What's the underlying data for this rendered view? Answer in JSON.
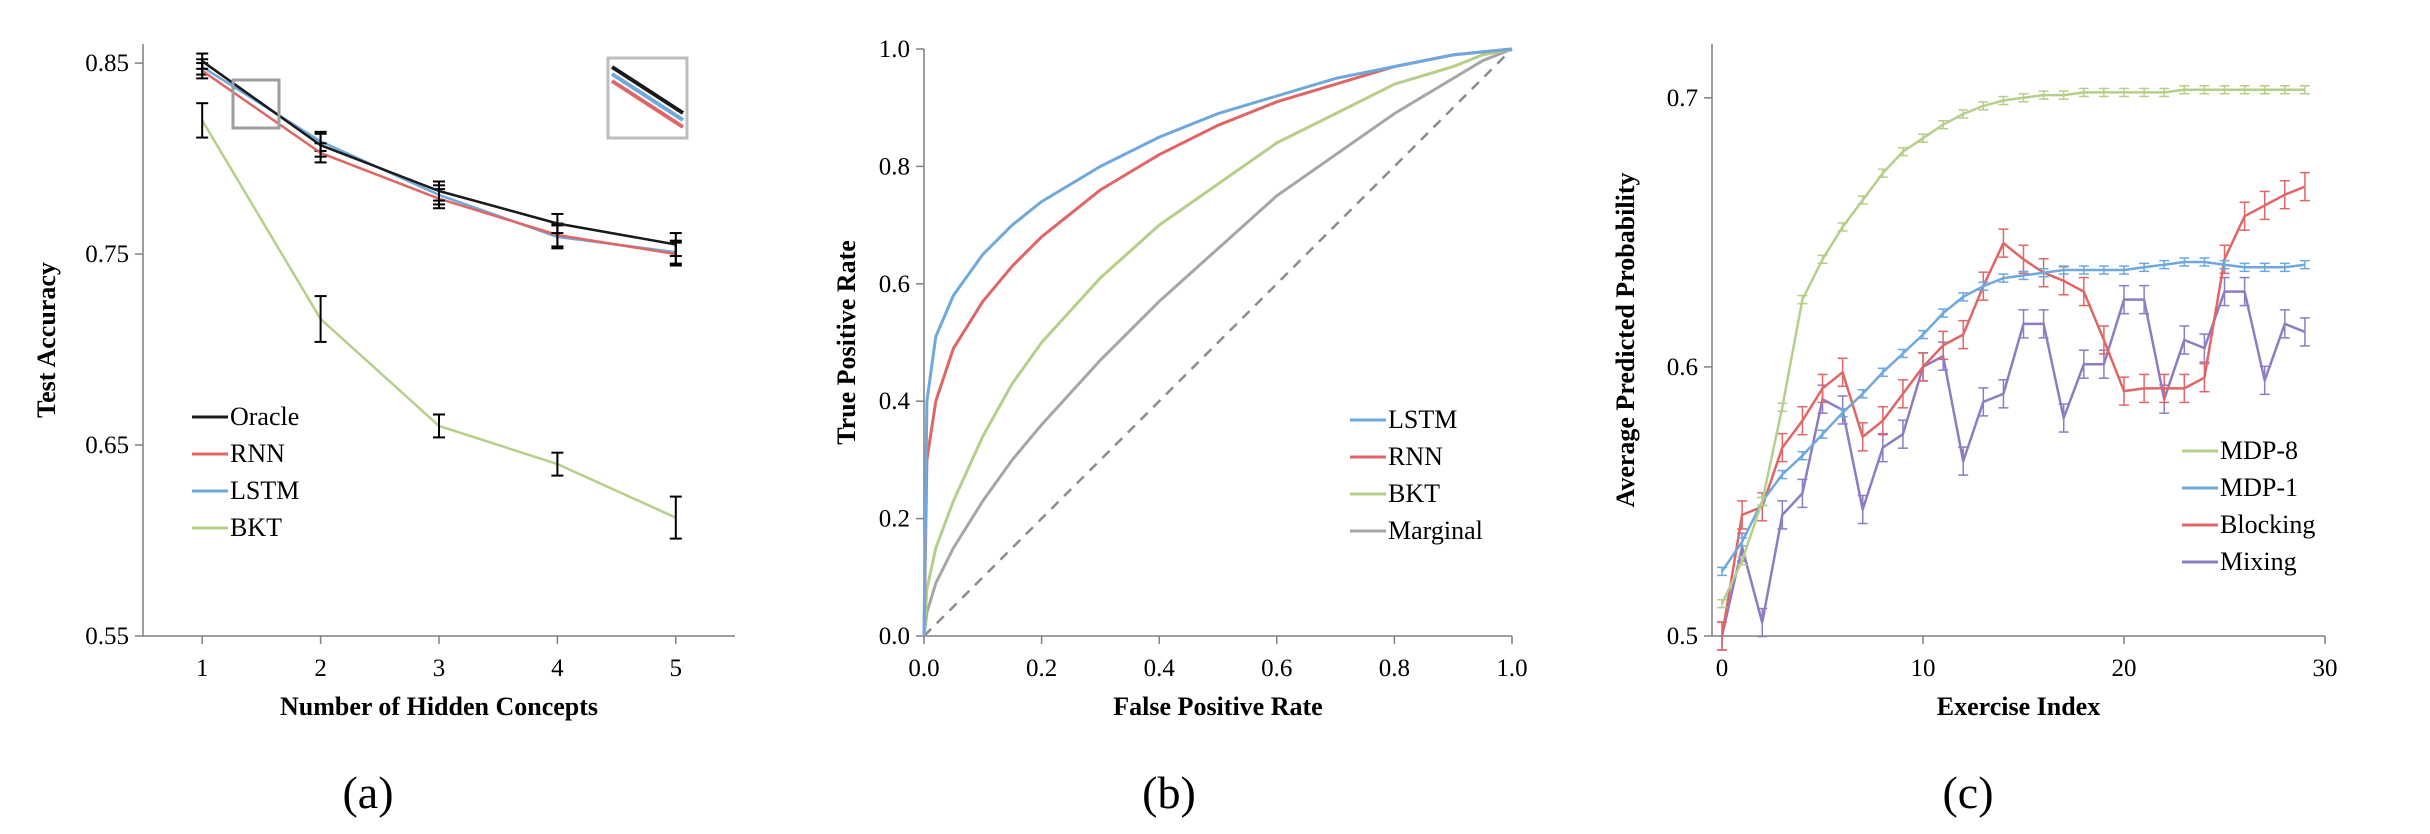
{
  "chart_data": [
    {
      "type": "line",
      "panel_label": "(a)",
      "xlabel": "Number of Hidden Concepts",
      "ylabel": "Test Accuracy",
      "xlim": [
        0.5,
        5.5
      ],
      "ylim": [
        0.55,
        0.86
      ],
      "x_ticks": [
        "1",
        "2",
        "3",
        "4",
        "5"
      ],
      "y_ticks": [
        "0.55",
        "0.65",
        "0.75",
        "0.85"
      ],
      "legend_position": "lower-left",
      "x": [
        1,
        2,
        3,
        4,
        5
      ],
      "series": [
        {
          "name": "Oracle",
          "color": "#1a1a1a",
          "values": [
            0.851,
            0.807,
            0.783,
            0.766,
            0.755
          ],
          "err": [
            0.004,
            0.006,
            0.005,
            0.005,
            0.006
          ]
        },
        {
          "name": "RNN",
          "color": "#e06666",
          "values": [
            0.846,
            0.803,
            0.779,
            0.76,
            0.75
          ],
          "err": [
            0.004,
            0.005,
            0.005,
            0.006,
            0.006
          ]
        },
        {
          "name": "LSTM",
          "color": "#6fa8dc",
          "values": [
            0.848,
            0.809,
            0.781,
            0.759,
            0.751
          ],
          "err": [
            0.004,
            0.005,
            0.005,
            0.006,
            0.006
          ]
        },
        {
          "name": "BKT",
          "color": "#b5cf8a",
          "values": [
            0.82,
            0.716,
            0.66,
            0.64,
            0.612
          ],
          "err": [
            0.009,
            0.012,
            0.006,
            0.006,
            0.011
          ]
        }
      ]
    },
    {
      "type": "line",
      "panel_label": "(b)",
      "xlabel": "False Positive Rate",
      "ylabel": "True Positive Rate",
      "xlim": [
        0,
        1
      ],
      "ylim": [
        0,
        1
      ],
      "x_ticks": [
        "0.0",
        "0.2",
        "0.4",
        "0.6",
        "0.8",
        "1.0"
      ],
      "y_ticks": [
        "0.0",
        "0.2",
        "0.4",
        "0.6",
        "0.8",
        "1.0"
      ],
      "legend_position": "lower-right",
      "diagonal": true,
      "x": [
        0,
        0.005,
        0.02,
        0.05,
        0.1,
        0.15,
        0.2,
        0.3,
        0.4,
        0.5,
        0.6,
        0.7,
        0.8,
        0.9,
        0.95,
        1.0
      ],
      "series": [
        {
          "name": "LSTM",
          "color": "#6fa8dc",
          "values": [
            0,
            0.4,
            0.51,
            0.58,
            0.65,
            0.7,
            0.74,
            0.8,
            0.85,
            0.89,
            0.92,
            0.95,
            0.97,
            0.99,
            0.995,
            1.0
          ]
        },
        {
          "name": "RNN",
          "color": "#e06666",
          "values": [
            0,
            0.3,
            0.4,
            0.49,
            0.57,
            0.63,
            0.68,
            0.76,
            0.82,
            0.87,
            0.91,
            0.94,
            0.97,
            0.99,
            0.995,
            1.0
          ]
        },
        {
          "name": "BKT",
          "color": "#b5cf8a",
          "values": [
            0,
            0.08,
            0.15,
            0.23,
            0.34,
            0.43,
            0.5,
            0.61,
            0.7,
            0.77,
            0.84,
            0.89,
            0.94,
            0.97,
            0.99,
            1.0
          ]
        },
        {
          "name": "Marginal",
          "color": "#a6a6a6",
          "values": [
            0,
            0.04,
            0.09,
            0.15,
            0.23,
            0.3,
            0.36,
            0.47,
            0.57,
            0.66,
            0.75,
            0.82,
            0.89,
            0.95,
            0.98,
            1.0
          ]
        }
      ]
    },
    {
      "type": "line",
      "panel_label": "(c)",
      "xlabel": "Exercise Index",
      "ylabel": "Average Predicted Probability",
      "xlim": [
        -0.5,
        30
      ],
      "ylim": [
        0.5,
        0.72
      ],
      "x_ticks": [
        "0",
        "10",
        "20",
        "30"
      ],
      "y_ticks": [
        "0.5",
        "0.6",
        "0.7"
      ],
      "legend_position": "lower-right",
      "x": [
        0,
        1,
        2,
        3,
        4,
        5,
        6,
        7,
        8,
        9,
        10,
        11,
        12,
        13,
        14,
        15,
        16,
        17,
        18,
        19,
        20,
        21,
        22,
        23,
        24,
        25,
        26,
        27,
        28,
        29
      ],
      "series": [
        {
          "name": "MDP-8",
          "color": "#b5cf8a",
          "values": [
            0.512,
            0.528,
            0.55,
            0.585,
            0.625,
            0.64,
            0.652,
            0.662,
            0.672,
            0.68,
            0.685,
            0.69,
            0.694,
            0.697,
            0.699,
            0.7,
            0.701,
            0.701,
            0.702,
            0.702,
            0.702,
            0.702,
            0.702,
            0.703,
            0.703,
            0.703,
            0.703,
            0.703,
            0.703,
            0.703
          ]
        },
        {
          "name": "MDP-1",
          "color": "#6fa8dc",
          "values": [
            0.524,
            0.535,
            0.55,
            0.56,
            0.567,
            0.575,
            0.583,
            0.59,
            0.598,
            0.605,
            0.612,
            0.62,
            0.626,
            0.63,
            0.633,
            0.634,
            0.635,
            0.636,
            0.636,
            0.636,
            0.636,
            0.637,
            0.638,
            0.639,
            0.639,
            0.638,
            0.637,
            0.637,
            0.637,
            0.638
          ]
        },
        {
          "name": "Blocking",
          "color": "#e06666",
          "values": [
            0.5,
            0.545,
            0.548,
            0.57,
            0.58,
            0.592,
            0.598,
            0.574,
            0.58,
            0.59,
            0.6,
            0.608,
            0.612,
            0.63,
            0.646,
            0.64,
            0.635,
            0.632,
            0.628,
            0.61,
            0.591,
            0.592,
            0.592,
            0.592,
            0.596,
            0.64,
            0.656,
            0.66,
            0.664,
            0.667
          ]
        },
        {
          "name": "Mixing",
          "color": "#8e7cc3",
          "values": [
            0.5,
            0.533,
            0.505,
            0.545,
            0.553,
            0.588,
            0.584,
            0.547,
            0.57,
            0.575,
            0.6,
            0.604,
            0.565,
            0.587,
            0.59,
            0.616,
            0.616,
            0.581,
            0.601,
            0.601,
            0.625,
            0.625,
            0.588,
            0.61,
            0.607,
            0.628,
            0.628,
            0.595,
            0.616,
            0.613
          ]
        }
      ]
    }
  ]
}
